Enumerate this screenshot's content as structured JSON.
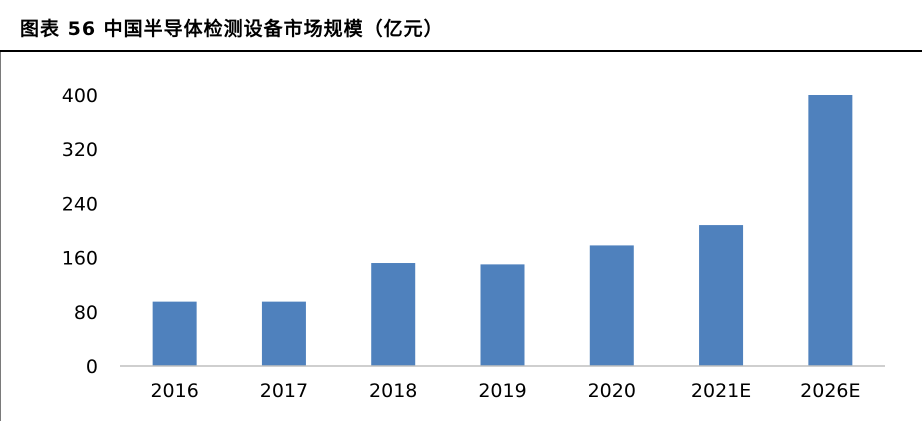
{
  "header": {
    "title": "图表 56 中国半导体检测设备市场规模（亿元）"
  },
  "colors": {
    "bar": "#4f81bd",
    "axis": "#bfbfbf",
    "title_rule": "#000000"
  },
  "chart_data": {
    "type": "bar",
    "title": "图表 56 中国半导体检测设备市场规模（亿元）",
    "xlabel": "",
    "ylabel": "",
    "categories": [
      "2016",
      "2017",
      "2018",
      "2019",
      "2020",
      "2021E",
      "2026E"
    ],
    "values": [
      95,
      95,
      152,
      150,
      178,
      208,
      400
    ],
    "yticks": [
      "0",
      "80",
      "160",
      "240",
      "320",
      "400"
    ],
    "ylim": [
      0,
      400
    ],
    "grid": false,
    "legend": "none"
  }
}
